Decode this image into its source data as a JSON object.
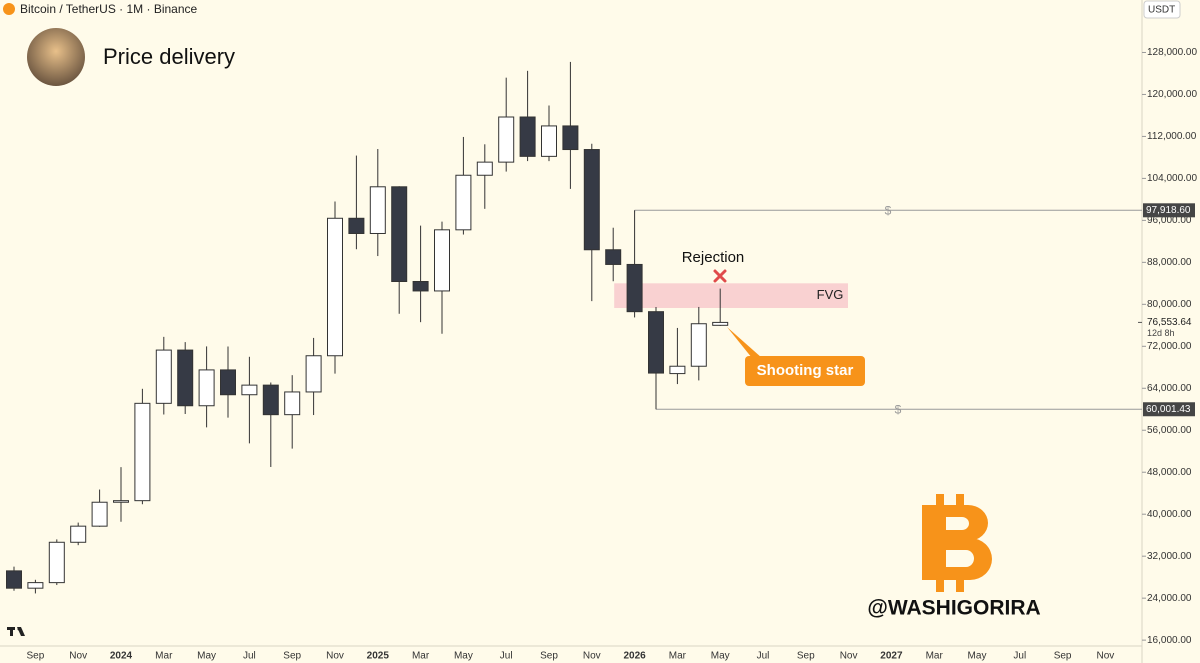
{
  "header": {
    "symbol": "Bitcoin / TetherUS · 1M · Binance",
    "currency": "USDT"
  },
  "chart_data": {
    "type": "candlestick",
    "title": "Price delivery",
    "categories": [
      null,
      "Sep",
      null,
      "Nov",
      null,
      "2024",
      null,
      "Mar",
      null,
      "May",
      null,
      "Jul",
      null,
      "Sep",
      null,
      "Nov",
      null,
      "2025",
      null,
      "Mar",
      null,
      "May",
      null,
      "Jul",
      null,
      "Sep",
      null,
      "Nov",
      null,
      "2026",
      null,
      "Mar",
      null,
      "May",
      null,
      "Jul",
      null,
      "Sep",
      null,
      "Nov",
      null,
      "2027",
      null,
      "Mar",
      null,
      "May",
      null,
      "Jul",
      null,
      "Sep",
      null,
      "Nov",
      null
    ],
    "open": [
      29200,
      25900,
      26960,
      34650,
      37720,
      42280,
      42580,
      61130,
      71280,
      60670,
      67500,
      62770,
      64600,
      58970,
      63300,
      70200,
      96400,
      93500,
      102400,
      84350,
      82550,
      94200,
      104600,
      107100,
      115700,
      108200,
      114000,
      109500,
      90400,
      87600,
      78600,
      66800,
      68200,
      76000,
      null,
      null,
      null,
      null,
      null,
      null,
      null,
      null,
      null,
      null,
      null,
      null,
      null,
      null,
      null,
      null,
      null,
      null,
      null
    ],
    "high": [
      30000,
      27500,
      35200,
      38400,
      44700,
      48970,
      63900,
      73800,
      72800,
      71980,
      71950,
      70000,
      65100,
      66500,
      73600,
      99600,
      108350,
      109600,
      102500,
      95000,
      95750,
      111900,
      110500,
      123200,
      124500,
      117900,
      126200,
      110600,
      94600,
      97918,
      79500,
      75500,
      79500,
      83000,
      null,
      null,
      null,
      null,
      null,
      null,
      null,
      null,
      null,
      null,
      null,
      null,
      null,
      null,
      null,
      null,
      null,
      null,
      null
    ],
    "low": [
      25400,
      24900,
      26500,
      34100,
      37600,
      38550,
      41900,
      59000,
      59100,
      56550,
      58400,
      53500,
      49000,
      52500,
      58900,
      66800,
      90500,
      89200,
      78200,
      76600,
      74400,
      93300,
      98200,
      105300,
      107300,
      107300,
      102000,
      80600,
      84400,
      77500,
      60001,
      64800,
      65500,
      75900,
      null,
      null,
      null,
      null,
      null,
      null,
      null,
      null,
      null,
      null,
      null,
      null,
      null,
      null,
      null,
      null,
      null,
      null,
      null
    ],
    "close": [
      25900,
      26960,
      34650,
      37720,
      42280,
      42580,
      61130,
      71280,
      60670,
      67500,
      62770,
      64600,
      58970,
      63300,
      70200,
      96400,
      93500,
      102400,
      84350,
      82550,
      94200,
      104600,
      107100,
      115700,
      108200,
      114000,
      109500,
      90400,
      87600,
      78600,
      66900,
      68200,
      76300,
      76553,
      null,
      null,
      null,
      null,
      null,
      null,
      null,
      null,
      null,
      null,
      null,
      null,
      null,
      null,
      null,
      null,
      null,
      null,
      null
    ],
    "ylim": [
      14500,
      138000
    ],
    "yticks": [
      {
        "value": 16000,
        "label": "16,000.00"
      },
      {
        "value": 24000,
        "label": "24,000.00"
      },
      {
        "value": 32000,
        "label": "32,000.00"
      },
      {
        "value": 40000,
        "label": "40,000.00"
      },
      {
        "value": 48000,
        "label": "48,000.00"
      },
      {
        "value": 56000,
        "label": "56,000.00"
      },
      {
        "value": 64000,
        "label": "64,000.00"
      },
      {
        "value": 72000,
        "label": "72,000.00"
      },
      {
        "value": 80000,
        "label": "80,000.00"
      },
      {
        "value": 88000,
        "label": "88,000.00"
      },
      {
        "value": 96000,
        "label": "96,000.00"
      },
      {
        "value": 104000,
        "label": "104,000.00"
      },
      {
        "value": 112000,
        "label": "112,000.00"
      },
      {
        "value": 120000,
        "label": "120,000.00"
      },
      {
        "value": 128000,
        "label": "128,000.00"
      }
    ],
    "levels": [
      {
        "value": 97918.6,
        "label": "97,918.60"
      },
      {
        "value": 60001.43,
        "label": "60,001.43"
      }
    ],
    "level_marker": "$",
    "last_price": {
      "value": 76553.64,
      "label": "76,553.64"
    },
    "countdown": "12d 8h",
    "fvg": {
      "label": "FVG",
      "low": 79300,
      "high": 84000
    },
    "annotations": [
      "Rejection",
      "Shooting star"
    ],
    "watermark": "@WASHIGORIRA"
  }
}
